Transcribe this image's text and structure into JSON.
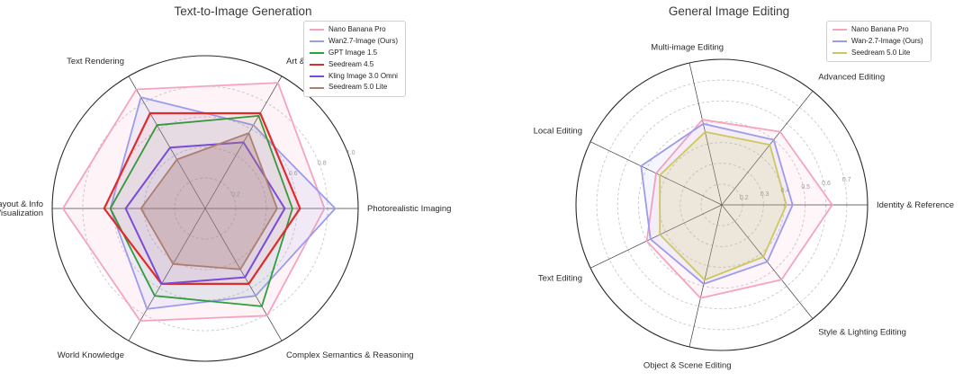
{
  "chart_data": [
    {
      "type": "radar",
      "title": "Text-to-Image Generation",
      "r_min": 0,
      "r_max": 1.0,
      "grid": true,
      "legend_position": "upper right",
      "ticks": [
        {
          "value": 0.2,
          "label": "0.2"
        },
        {
          "value": 0.4,
          "label": ""
        },
        {
          "value": 0.6,
          "label": "0.6"
        },
        {
          "value": 0.8,
          "label": "0.8"
        },
        {
          "value": 1.0,
          "label": "1.0"
        }
      ],
      "axes": [
        "Photorealistic Imaging",
        "Art & Design",
        "Text Rendering",
        "Layout & Info\nVisualization",
        "World Knowledge",
        "Complex Semantics & Reasoning"
      ],
      "series": [
        {
          "name": "Nano Banana Pro",
          "color": "#F5A3C0",
          "fill_opacity": 0.12,
          "line_width": 1.8,
          "values": [
            0.78,
            0.95,
            0.9,
            0.93,
            0.85,
            0.81
          ]
        },
        {
          "name": "Wan2.7-Image (Ours)",
          "color": "#9D9BEC",
          "fill_opacity": 0.12,
          "line_width": 1.8,
          "values": [
            0.85,
            0.63,
            0.84,
            0.62,
            0.76,
            0.66
          ]
        },
        {
          "name": "GPT Image 1.5",
          "color": "#2E9E3F",
          "fill_opacity": 0.05,
          "line_width": 1.8,
          "values": [
            0.57,
            0.7,
            0.63,
            0.62,
            0.66,
            0.74
          ]
        },
        {
          "name": "Seedream 4.5",
          "color": "#E02B2B",
          "fill_opacity": 0.05,
          "line_width": 2.2,
          "values": [
            0.62,
            0.72,
            0.72,
            0.66,
            0.57,
            0.57
          ]
        },
        {
          "name": "Kling Image 3.0 Omni",
          "color": "#7A4BD6",
          "fill_opacity": 0.06,
          "line_width": 2.0,
          "values": [
            0.52,
            0.5,
            0.46,
            0.52,
            0.57,
            0.52
          ]
        },
        {
          "name": "Seedream 5.0 Lite",
          "color": "#AD7F70",
          "fill_opacity": 0.3,
          "line_width": 1.8,
          "values": [
            0.47,
            0.57,
            0.37,
            0.42,
            0.42,
            0.46
          ]
        }
      ]
    },
    {
      "type": "radar",
      "title": "General Image Editing",
      "r_min": 0.1,
      "r_max": 0.8,
      "grid": true,
      "legend_position": "upper right",
      "ticks": [
        {
          "value": 0.2,
          "label": "0.2"
        },
        {
          "value": 0.3,
          "label": "0.3"
        },
        {
          "value": 0.4,
          "label": "0.4"
        },
        {
          "value": 0.5,
          "label": "0.5"
        },
        {
          "value": 0.6,
          "label": "0.6"
        },
        {
          "value": 0.7,
          "label": "0.7"
        },
        {
          "value": 0.8,
          "label": ""
        }
      ],
      "axes": [
        "Identity & Reference",
        "Advanced Editing",
        "Multi-image Editing",
        "Local Editing",
        "Text Editing",
        "Object & Scene Editing",
        "Style & Lighting Editing"
      ],
      "series": [
        {
          "name": "Nano Banana Pro",
          "color": "#F5A3C0",
          "fill_opacity": 0.1,
          "line_width": 1.8,
          "values": [
            0.63,
            0.55,
            0.52,
            0.45,
            0.5,
            0.56,
            0.56
          ]
        },
        {
          "name": "Wan-2.7-Image (Ours)",
          "color": "#9D9BEC",
          "fill_opacity": 0.1,
          "line_width": 1.8,
          "values": [
            0.44,
            0.5,
            0.5,
            0.53,
            0.48,
            0.49,
            0.45
          ]
        },
        {
          "name": "Seedream 5.0 Lite",
          "color": "#CFC75E",
          "fill_opacity": 0.18,
          "line_width": 1.8,
          "values": [
            0.41,
            0.47,
            0.46,
            0.43,
            0.43,
            0.47,
            0.42
          ]
        }
      ]
    }
  ]
}
